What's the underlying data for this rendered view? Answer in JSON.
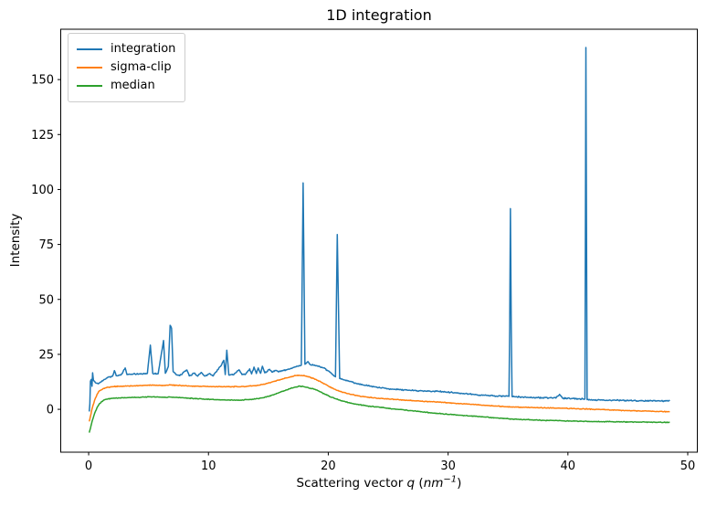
{
  "window": {
    "kind": "matplotlib-figure"
  },
  "chart_data": {
    "type": "line",
    "title": "1D integration",
    "ylabel": "Intensity",
    "xlabel_parts": {
      "prefix": "Scattering vector ",
      "var": "q",
      "open": " (",
      "unit": "nm",
      "exp": "−1",
      "close": ")"
    },
    "xlim": [
      -2.33,
      50.8
    ],
    "ylim": [
      -19.5,
      172.9
    ],
    "x_ticks": [
      0,
      10,
      20,
      30,
      40,
      50
    ],
    "y_ticks": [
      0,
      25,
      50,
      75,
      100,
      125,
      150
    ],
    "grid": false,
    "legend_position": "upper-left",
    "background": "#ffffff",
    "spine_color": "#000000",
    "series": [
      {
        "name": "integration",
        "color": "#1f77b4",
        "noise": 0.35,
        "points": [
          [
            0.05,
            -1
          ],
          [
            0.1,
            2.5
          ],
          [
            0.15,
            12.8
          ],
          [
            0.22,
            13.6
          ],
          [
            0.28,
            10.5
          ],
          [
            0.33,
            16.6
          ],
          [
            0.4,
            13.2
          ],
          [
            0.55,
            12.2
          ],
          [
            0.8,
            11.6
          ],
          [
            1.0,
            12.4
          ],
          [
            1.3,
            13.6
          ],
          [
            1.6,
            14.6
          ],
          [
            2.0,
            15.1
          ],
          [
            2.15,
            17.6
          ],
          [
            2.3,
            15.3
          ],
          [
            2.7,
            15.6
          ],
          [
            3.05,
            18.8
          ],
          [
            3.2,
            15.8
          ],
          [
            3.7,
            16.0
          ],
          [
            4.3,
            16.1
          ],
          [
            4.9,
            16.3
          ],
          [
            5.15,
            29.2
          ],
          [
            5.35,
            16.3
          ],
          [
            5.8,
            16.2
          ],
          [
            6.25,
            31.3
          ],
          [
            6.4,
            16.4
          ],
          [
            6.65,
            19.5
          ],
          [
            6.8,
            38.2
          ],
          [
            6.92,
            36.8
          ],
          [
            7.05,
            17.2
          ],
          [
            7.3,
            15.8
          ],
          [
            7.6,
            15.3
          ],
          [
            8.2,
            17.9
          ],
          [
            8.4,
            15.2
          ],
          [
            8.85,
            16.5
          ],
          [
            9.1,
            15.1
          ],
          [
            9.4,
            16.8
          ],
          [
            9.7,
            15.1
          ],
          [
            10.1,
            16.3
          ],
          [
            10.4,
            15.2
          ],
          [
            10.75,
            18.0
          ],
          [
            11.0,
            19.5
          ],
          [
            11.28,
            22.3
          ],
          [
            11.4,
            15.8
          ],
          [
            11.53,
            26.9
          ],
          [
            11.7,
            15.6
          ],
          [
            12.1,
            15.7
          ],
          [
            12.55,
            18.0
          ],
          [
            12.8,
            15.8
          ],
          [
            13.1,
            16.0
          ],
          [
            13.44,
            18.4
          ],
          [
            13.6,
            16.1
          ],
          [
            13.8,
            19.2
          ],
          [
            14.0,
            16.3
          ],
          [
            14.15,
            18.8
          ],
          [
            14.35,
            16.4
          ],
          [
            14.5,
            19.6
          ],
          [
            14.7,
            16.6
          ],
          [
            15.1,
            18.2
          ],
          [
            15.3,
            16.9
          ],
          [
            15.55,
            17.7
          ],
          [
            15.8,
            17.2
          ],
          [
            16.2,
            17.6
          ],
          [
            16.6,
            18.1
          ],
          [
            17.0,
            18.8
          ],
          [
            17.4,
            19.6
          ],
          [
            17.75,
            20.1
          ],
          [
            17.9,
            103.0
          ],
          [
            18.05,
            20.5
          ],
          [
            18.3,
            21.7
          ],
          [
            18.5,
            20.3
          ],
          [
            18.8,
            20.1
          ],
          [
            19.1,
            19.7
          ],
          [
            19.5,
            19.0
          ],
          [
            19.9,
            17.8
          ],
          [
            20.3,
            16.2
          ],
          [
            20.6,
            14.8
          ],
          [
            20.75,
            79.5
          ],
          [
            20.95,
            14.0
          ],
          [
            21.3,
            13.4
          ],
          [
            21.8,
            12.7
          ],
          [
            22.3,
            11.9
          ],
          [
            22.9,
            11.1
          ],
          [
            23.5,
            10.5
          ],
          [
            24.2,
            9.9
          ],
          [
            25.0,
            9.4
          ],
          [
            25.8,
            9.0
          ],
          [
            26.6,
            8.7
          ],
          [
            27.4,
            8.5
          ],
          [
            28.2,
            8.3
          ],
          [
            29.0,
            8.2
          ],
          [
            29.8,
            7.9
          ],
          [
            30.6,
            7.5
          ],
          [
            31.4,
            7.1
          ],
          [
            32.2,
            6.7
          ],
          [
            33.0,
            6.4
          ],
          [
            33.8,
            6.1
          ],
          [
            34.6,
            6.0
          ],
          [
            35.08,
            5.9
          ],
          [
            35.14,
            37.2
          ],
          [
            35.2,
            91.3
          ],
          [
            35.27,
            37.5
          ],
          [
            35.34,
            5.8
          ],
          [
            36.0,
            5.6
          ],
          [
            36.8,
            5.4
          ],
          [
            37.6,
            5.3
          ],
          [
            38.4,
            5.2
          ],
          [
            39.0,
            5.1
          ],
          [
            39.3,
            6.8
          ],
          [
            39.6,
            5.0
          ],
          [
            40.3,
            4.9
          ],
          [
            41.0,
            4.8
          ],
          [
            41.42,
            4.7
          ],
          [
            41.5,
            164.6
          ],
          [
            41.6,
            4.4
          ],
          [
            42.2,
            4.3
          ],
          [
            43.0,
            4.2
          ],
          [
            44.0,
            4.1
          ],
          [
            45.0,
            4.0
          ],
          [
            46.0,
            3.95
          ],
          [
            47.0,
            3.9
          ],
          [
            47.8,
            3.8
          ],
          [
            48.5,
            3.8
          ]
        ]
      },
      {
        "name": "sigma-clip",
        "color": "#ff7f0e",
        "noise": 0.22,
        "points": [
          [
            0.05,
            -5.5
          ],
          [
            0.15,
            -3.2
          ],
          [
            0.3,
            0.5
          ],
          [
            0.5,
            4.2
          ],
          [
            0.7,
            6.8
          ],
          [
            0.9,
            8.4
          ],
          [
            1.2,
            9.4
          ],
          [
            1.5,
            9.9
          ],
          [
            2.0,
            10.3
          ],
          [
            2.6,
            10.5
          ],
          [
            3.2,
            10.6
          ],
          [
            3.8,
            10.7
          ],
          [
            4.4,
            10.8
          ],
          [
            5.0,
            11.0
          ],
          [
            5.6,
            10.9
          ],
          [
            6.2,
            10.9
          ],
          [
            6.8,
            11.1
          ],
          [
            7.4,
            10.9
          ],
          [
            8.0,
            10.7
          ],
          [
            8.6,
            10.6
          ],
          [
            9.2,
            10.5
          ],
          [
            9.8,
            10.4
          ],
          [
            10.5,
            10.3
          ],
          [
            11.2,
            10.3
          ],
          [
            12.0,
            10.3
          ],
          [
            12.7,
            10.3
          ],
          [
            13.3,
            10.5
          ],
          [
            13.9,
            10.8
          ],
          [
            14.5,
            11.3
          ],
          [
            15.0,
            12.0
          ],
          [
            15.5,
            12.7
          ],
          [
            16.0,
            13.5
          ],
          [
            16.5,
            14.3
          ],
          [
            17.0,
            15.0
          ],
          [
            17.4,
            15.5
          ],
          [
            17.8,
            15.4
          ],
          [
            18.2,
            15.0
          ],
          [
            18.6,
            14.4
          ],
          [
            19.0,
            13.5
          ],
          [
            19.5,
            12.1
          ],
          [
            20.0,
            10.6
          ],
          [
            20.5,
            9.2
          ],
          [
            21.0,
            8.1
          ],
          [
            21.5,
            7.3
          ],
          [
            22.0,
            6.7
          ],
          [
            22.6,
            6.1
          ],
          [
            23.2,
            5.6
          ],
          [
            23.8,
            5.2
          ],
          [
            24.5,
            4.9
          ],
          [
            25.2,
            4.6
          ],
          [
            26.0,
            4.3
          ],
          [
            26.8,
            4.0
          ],
          [
            27.6,
            3.8
          ],
          [
            28.4,
            3.5
          ],
          [
            29.2,
            3.3
          ],
          [
            30.0,
            3.0
          ],
          [
            30.8,
            2.7
          ],
          [
            31.6,
            2.4
          ],
          [
            32.4,
            2.1
          ],
          [
            33.2,
            1.8
          ],
          [
            34.0,
            1.5
          ],
          [
            34.8,
            1.2
          ],
          [
            35.6,
            1.0
          ],
          [
            36.4,
            0.9
          ],
          [
            37.2,
            0.8
          ],
          [
            38.0,
            0.7
          ],
          [
            38.8,
            0.6
          ],
          [
            39.6,
            0.5
          ],
          [
            40.4,
            0.35
          ],
          [
            41.2,
            0.2
          ],
          [
            42.0,
            0.05
          ],
          [
            42.8,
            -0.1
          ],
          [
            43.6,
            -0.3
          ],
          [
            44.4,
            -0.45
          ],
          [
            45.2,
            -0.6
          ],
          [
            46.0,
            -0.75
          ],
          [
            46.8,
            -0.85
          ],
          [
            47.6,
            -1.0
          ],
          [
            48.5,
            -1.1
          ]
        ]
      },
      {
        "name": "median",
        "color": "#2ca02c",
        "noise": 0.22,
        "points": [
          [
            0.05,
            -10.6
          ],
          [
            0.15,
            -8.6
          ],
          [
            0.3,
            -5.2
          ],
          [
            0.5,
            -1.8
          ],
          [
            0.7,
            0.8
          ],
          [
            0.9,
            2.6
          ],
          [
            1.2,
            3.9
          ],
          [
            1.5,
            4.6
          ],
          [
            2.0,
            5.0
          ],
          [
            2.6,
            5.2
          ],
          [
            3.2,
            5.3
          ],
          [
            3.8,
            5.4
          ],
          [
            4.4,
            5.5
          ],
          [
            5.0,
            5.7
          ],
          [
            5.6,
            5.6
          ],
          [
            6.2,
            5.5
          ],
          [
            6.8,
            5.6
          ],
          [
            7.4,
            5.4
          ],
          [
            8.0,
            5.2
          ],
          [
            8.6,
            5.0
          ],
          [
            9.2,
            4.8
          ],
          [
            9.8,
            4.6
          ],
          [
            10.5,
            4.4
          ],
          [
            11.2,
            4.3
          ],
          [
            12.0,
            4.2
          ],
          [
            12.7,
            4.2
          ],
          [
            13.3,
            4.4
          ],
          [
            13.9,
            4.7
          ],
          [
            14.5,
            5.2
          ],
          [
            15.0,
            5.9
          ],
          [
            15.5,
            6.8
          ],
          [
            16.0,
            7.8
          ],
          [
            16.5,
            8.8
          ],
          [
            17.0,
            9.7
          ],
          [
            17.3,
            10.2
          ],
          [
            17.6,
            10.5
          ],
          [
            17.9,
            10.4
          ],
          [
            18.2,
            10.0
          ],
          [
            18.6,
            9.5
          ],
          [
            19.0,
            8.8
          ],
          [
            19.5,
            7.5
          ],
          [
            20.0,
            6.2
          ],
          [
            20.5,
            5.0
          ],
          [
            21.0,
            4.1
          ],
          [
            21.5,
            3.3
          ],
          [
            22.0,
            2.7
          ],
          [
            22.6,
            2.1
          ],
          [
            23.2,
            1.6
          ],
          [
            23.8,
            1.2
          ],
          [
            24.5,
            0.8
          ],
          [
            25.2,
            0.3
          ],
          [
            26.0,
            -0.1
          ],
          [
            26.8,
            -0.6
          ],
          [
            27.6,
            -1.0
          ],
          [
            28.4,
            -1.5
          ],
          [
            29.2,
            -1.9
          ],
          [
            30.0,
            -2.3
          ],
          [
            30.8,
            -2.6
          ],
          [
            31.6,
            -2.9
          ],
          [
            32.4,
            -3.2
          ],
          [
            33.2,
            -3.5
          ],
          [
            34.0,
            -3.9
          ],
          [
            34.8,
            -4.2
          ],
          [
            35.6,
            -4.5
          ],
          [
            36.4,
            -4.7
          ],
          [
            37.2,
            -4.8
          ],
          [
            38.0,
            -5.0
          ],
          [
            38.8,
            -5.1
          ],
          [
            39.6,
            -5.25
          ],
          [
            40.4,
            -5.35
          ],
          [
            41.2,
            -5.45
          ],
          [
            42.0,
            -5.55
          ],
          [
            42.8,
            -5.6
          ],
          [
            43.6,
            -5.65
          ],
          [
            44.4,
            -5.7
          ],
          [
            45.2,
            -5.75
          ],
          [
            46.0,
            -5.8
          ],
          [
            46.8,
            -5.85
          ],
          [
            47.6,
            -5.9
          ],
          [
            48.5,
            -6.0
          ]
        ]
      }
    ]
  }
}
